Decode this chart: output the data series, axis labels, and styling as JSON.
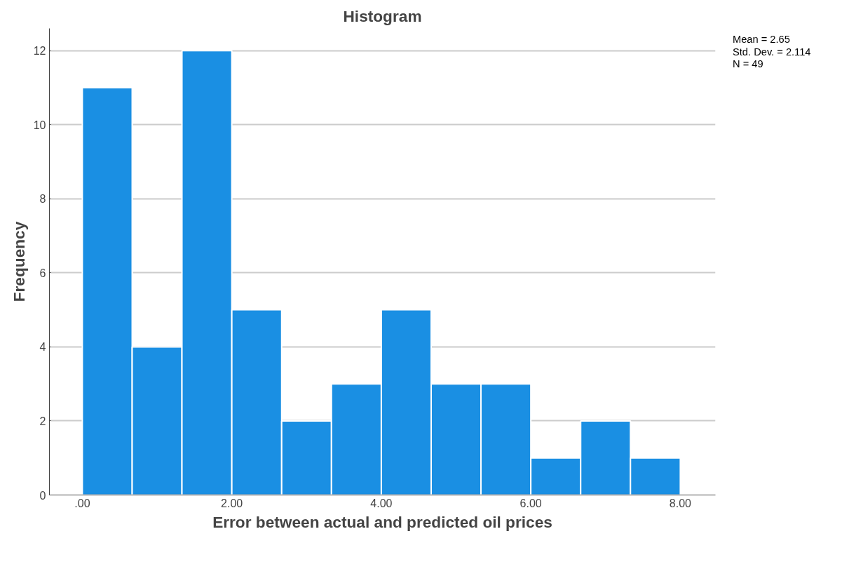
{
  "chart_data": {
    "type": "histogram",
    "title": "Histogram",
    "xlabel": "Error between actual and predicted oil prices",
    "ylabel": "Frequency",
    "bins": [
      0,
      0.667,
      1.333,
      2,
      2.667,
      3.333,
      4,
      4.667,
      5.333,
      6,
      6.667,
      7.333,
      8
    ],
    "values": [
      11,
      4,
      12,
      5,
      2,
      3,
      5,
      3,
      3,
      1,
      2,
      1
    ],
    "color": "#1a8fe3",
    "xlim": [
      -0.44,
      8.47
    ],
    "ylim": [
      0,
      12.6
    ],
    "xticks": [
      {
        "value": 0,
        "label": ".00"
      },
      {
        "value": 2,
        "label": "2.00"
      },
      {
        "value": 4,
        "label": "4.00"
      },
      {
        "value": 6,
        "label": "6.00"
      },
      {
        "value": 8,
        "label": "8.00"
      }
    ],
    "yticks": [
      0,
      2,
      4,
      6,
      8,
      10,
      12
    ],
    "grid": "y",
    "annotations": [
      "Mean = 2.65",
      "Std. Dev. = 2.114",
      "N = 49"
    ]
  }
}
